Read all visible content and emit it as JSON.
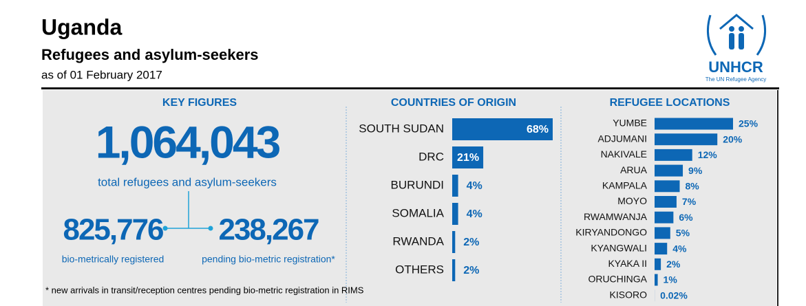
{
  "header": {
    "title": "Uganda",
    "subtitle": "Refugees and asylum-seekers",
    "date": "as of 01 February 2017"
  },
  "logo": {
    "name": "UNHCR",
    "tagline": "The UN Refugee Agency"
  },
  "key_figures": {
    "title": "KEY FIGURES",
    "total": "1,064,043",
    "total_label": "total refugees and asylum-seekers",
    "registered": "825,776",
    "registered_label": "bio-metrically registered",
    "pending": "238,267",
    "pending_label": "pending bio-metric registration*",
    "footnote": "* new arrivals in transit/reception centres pending bio-metric registration in RIMS"
  },
  "chart_data": [
    {
      "type": "bar",
      "title": "COUNTRIES OF ORIGIN",
      "color": "#0d67b5",
      "categories": [
        "SOUTH SUDAN",
        "DRC",
        "BURUNDI",
        "SOMALIA",
        "RWANDA",
        "OTHERS"
      ],
      "values": [
        68,
        21,
        4,
        4,
        2,
        2
      ],
      "value_labels": [
        "68%",
        "21%",
        "4%",
        "4%",
        "2%",
        "2%"
      ]
    },
    {
      "type": "bar",
      "title": "REFUGEE LOCATIONS",
      "color": "#0d67b5",
      "categories": [
        "YUMBE",
        "ADJUMANI",
        "NAKIVALE",
        "ARUA",
        "KAMPALA",
        "MOYO",
        "RWAMWANJA",
        "KIRYANDONGO",
        "KYANGWALI",
        "KYAKA II",
        "ORUCHINGA",
        "KISORO"
      ],
      "values": [
        25,
        20,
        12,
        9,
        8,
        7,
        6,
        5,
        4,
        2,
        1,
        0.02
      ],
      "value_labels": [
        "25%",
        "20%",
        "12%",
        "9%",
        "8%",
        "7%",
        "6%",
        "5%",
        "4%",
        "2%",
        "1%",
        "0.02%"
      ]
    }
  ]
}
